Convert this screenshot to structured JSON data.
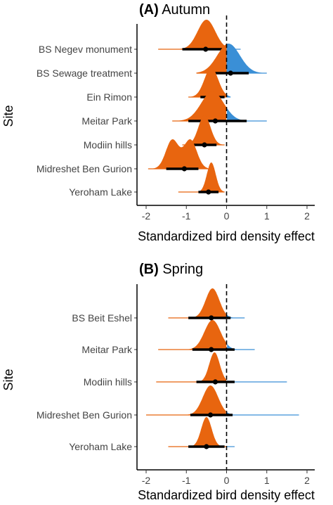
{
  "chart_data": [
    {
      "type": "density-interval",
      "tag": "(A)",
      "title": "Autumn",
      "xlabel": "Standardized bird density effect",
      "ylabel": "Site",
      "xlim": [
        -2.2,
        2.2
      ],
      "xticks": [
        -2,
        -1,
        0,
        1,
        2
      ],
      "reference_line_x": 0,
      "colors": {
        "negative": "#e8650f",
        "positive": "#3a8fd6",
        "interval": "#000000",
        "reference": "#000000"
      },
      "sites": [
        {
          "name": "BS Negev monument",
          "mode": -0.5,
          "sd": 0.22,
          "point": -0.52,
          "inner": [
            -1.1,
            -0.1
          ],
          "outer": [
            -1.7,
            0.35
          ]
        },
        {
          "name": "BS Sewage treatment",
          "mode": 0.05,
          "sd": 0.28,
          "point": 0.1,
          "inner": [
            -0.45,
            0.55
          ],
          "outer": [
            -0.75,
            1.0
          ]
        },
        {
          "name": "Ein Rimon",
          "mode": -0.38,
          "sd": 0.17,
          "point": -0.38,
          "inner": [
            -0.65,
            -0.05
          ],
          "outer": [
            -0.95,
            0.1
          ]
        },
        {
          "name": "Meitar Park",
          "mode": -0.35,
          "sd": 0.28,
          "point": -0.28,
          "inner": [
            -0.95,
            0.5
          ],
          "outer": [
            -1.35,
            1.0
          ]
        },
        {
          "name": "Modiin hills",
          "mode": -0.55,
          "sd": 0.15,
          "point": -0.55,
          "inner": [
            -0.85,
            -0.25
          ],
          "outer": [
            -1.1,
            -0.05
          ]
        },
        {
          "name": "Midreshet Ben Gurion",
          "bimodal": [
            -1.35,
            -0.9
          ],
          "sd": 0.16,
          "point": -1.05,
          "inner": [
            -1.5,
            -0.7
          ],
          "outer": [
            -1.95,
            -0.45
          ]
        },
        {
          "name": "Yeroham Lake",
          "mode": -0.38,
          "sd": 0.11,
          "point": -0.45,
          "inner": [
            -0.7,
            -0.2
          ],
          "outer": [
            -1.2,
            -0.05
          ]
        }
      ]
    },
    {
      "type": "density-interval",
      "tag": "(B)",
      "title": "Spring",
      "xlabel": "Standardized bird density effect",
      "ylabel": "Site",
      "xlim": [
        -2.2,
        2.2
      ],
      "xticks": [
        -2,
        -1,
        0,
        1,
        2
      ],
      "reference_line_x": 0,
      "colors": {
        "negative": "#e8650f",
        "positive": "#3a8fd6",
        "interval": "#000000",
        "reference": "#000000"
      },
      "sites": [
        {
          "name": "BS Beit Eshel",
          "mode": -0.35,
          "sd": 0.17,
          "point": -0.38,
          "inner": [
            -0.95,
            0.1
          ],
          "outer": [
            -1.45,
            0.45
          ]
        },
        {
          "name": "Meitar Park",
          "mode": -0.35,
          "sd": 0.2,
          "point": -0.38,
          "inner": [
            -0.85,
            0.2
          ],
          "outer": [
            -1.7,
            0.7
          ]
        },
        {
          "name": "Modiin hills",
          "mode": -0.3,
          "sd": 0.13,
          "point": -0.28,
          "inner": [
            -0.75,
            0.2
          ],
          "outer": [
            -1.75,
            1.5
          ]
        },
        {
          "name": "Midreshet Ben Gurion",
          "mode": -0.4,
          "sd": 0.19,
          "point": -0.4,
          "inner": [
            -0.9,
            0.15
          ],
          "outer": [
            -2.0,
            1.8
          ]
        },
        {
          "name": "Yeroham Lake",
          "mode": -0.5,
          "sd": 0.13,
          "point": -0.5,
          "inner": [
            -0.95,
            -0.05
          ],
          "outer": [
            -1.45,
            0.2
          ]
        }
      ]
    }
  ]
}
